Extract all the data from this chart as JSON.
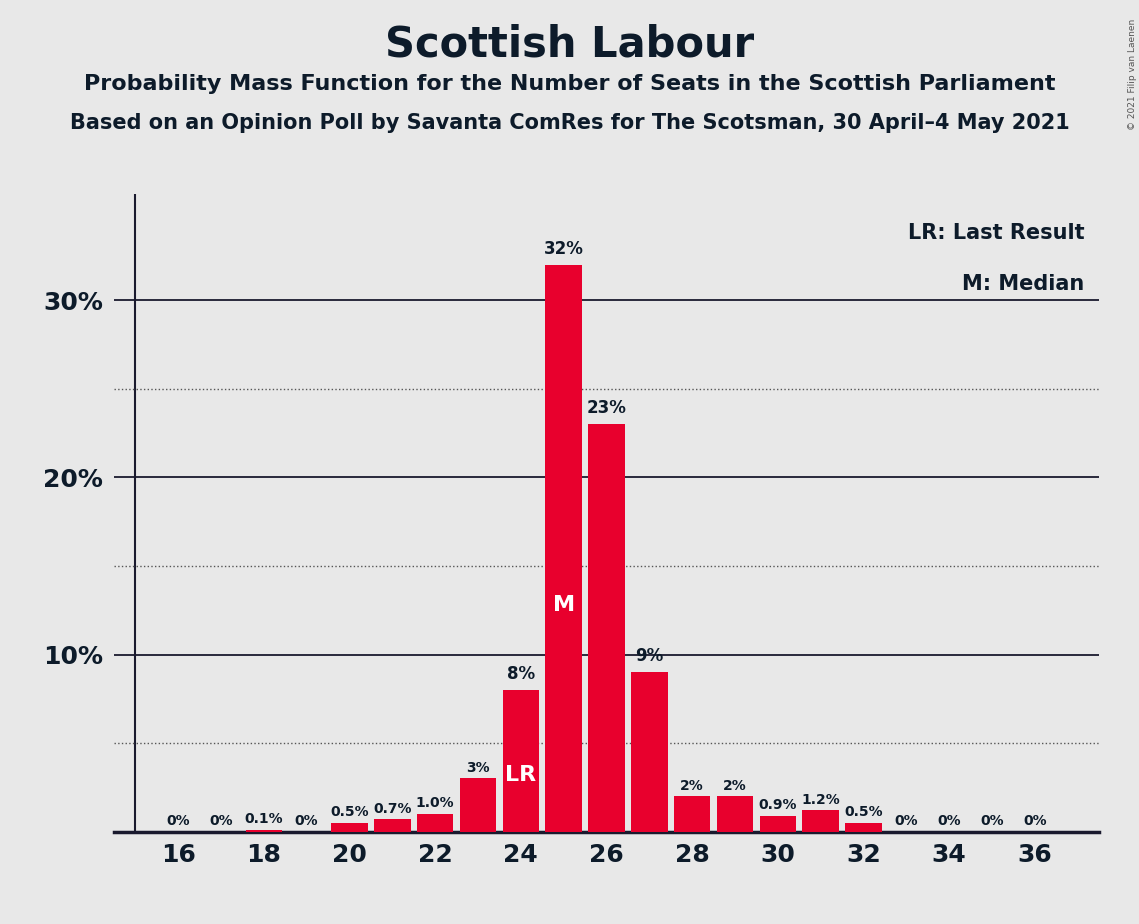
{
  "title": "Scottish Labour",
  "subtitle1": "Probability Mass Function for the Number of Seats in the Scottish Parliament",
  "subtitle2": "Based on an Opinion Poll by Savanta ComRes for The Scotsman, 30 April–4 May 2021",
  "copyright_text": "© 2021 Filip van Laenen",
  "legend_lr": "LR: Last Result",
  "legend_m": "M: Median",
  "bar_color": "#E8002D",
  "background_color": "#E8E8E8",
  "seats": [
    16,
    17,
    18,
    19,
    20,
    21,
    22,
    23,
    24,
    25,
    26,
    27,
    28,
    29,
    30,
    31,
    32,
    33,
    34,
    35,
    36
  ],
  "probabilities": [
    0.0,
    0.0,
    0.1,
    0.0,
    0.5,
    0.7,
    1.0,
    3.0,
    8.0,
    32.0,
    23.0,
    9.0,
    2.0,
    2.0,
    0.9,
    1.2,
    0.5,
    0.0,
    0.0,
    0.0,
    0.0
  ],
  "labels": [
    "0%",
    "0%",
    "0.1%",
    "0%",
    "0.5%",
    "0.7%",
    "1.0%",
    "3%",
    "8%",
    "32%",
    "23%",
    "9%",
    "2%",
    "2%",
    "0.9%",
    "1.2%",
    "0.5%",
    "0%",
    "0%",
    "0%",
    "0%"
  ],
  "label_display_seat": [
    16,
    17,
    18,
    19,
    20,
    21,
    22,
    23,
    24,
    25,
    26,
    27,
    28,
    29,
    30,
    31,
    32,
    33,
    34,
    35,
    36
  ],
  "last_result_seat": 24,
  "median_seat": 25,
  "xticks": [
    16,
    18,
    20,
    22,
    24,
    26,
    28,
    30,
    32,
    34,
    36
  ],
  "ytick_positions": [
    10,
    20,
    30
  ],
  "ytick_labels": [
    "10%",
    "20%",
    "30%"
  ],
  "dotted_gridlines": [
    5,
    15,
    25
  ],
  "solid_gridlines": [
    10,
    20,
    30
  ],
  "ylim": [
    0,
    36
  ],
  "xlim_left": 14.5,
  "xlim_right": 37.5,
  "bar_width": 0.85,
  "title_fontsize": 30,
  "subtitle_fontsize": 16,
  "tick_fontsize": 18,
  "label_fontsize_small": 10,
  "label_fontsize_large": 12,
  "legend_fontsize": 15,
  "lr_m_fontsize": 16,
  "text_color": "#0d1b2a"
}
